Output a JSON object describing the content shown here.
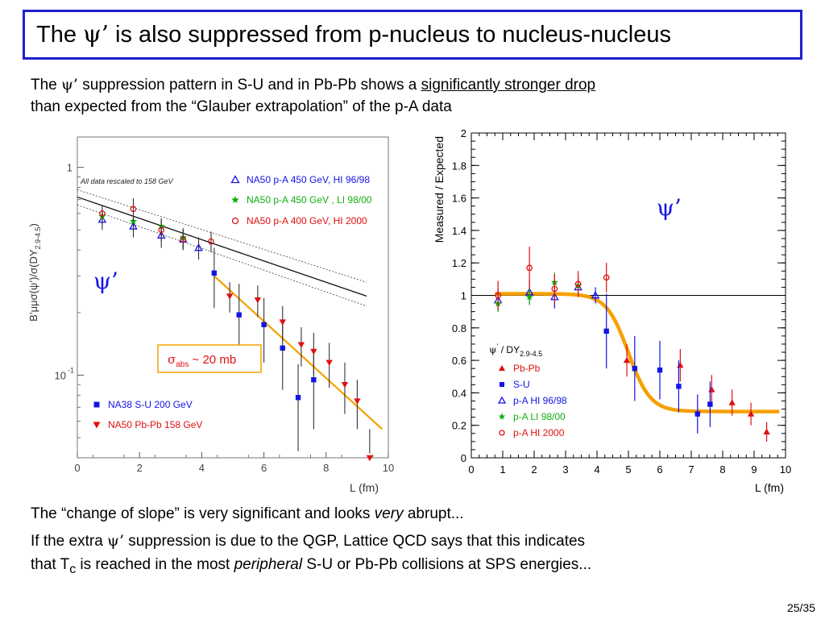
{
  "title": {
    "pre": "The ",
    "psi": "ψ’",
    "post": " is also suppressed from p-nucleus to nucleus-nucleus"
  },
  "intro": {
    "line1_pre": "The ",
    "psi": "ψ’",
    "line1_mid": " suppression pattern in S-U and in Pb-Pb shows a ",
    "line1_underline": "significantly stronger drop",
    "line2": "than expected from the “Glauber extrapolation” of the p-A data"
  },
  "bottom": {
    "line1_pre": "The “change of slope” is very significant and looks ",
    "line1_em": "very",
    "line1_post": " abrupt...",
    "line2_pre": "If the extra ",
    "psi": "ψ’",
    "line2_post": " suppression is due to the QGP, Lattice QCD says that this indicates",
    "line3_pre": "that T",
    "line3_sub": "c",
    "line3_mid": " is reached in the most ",
    "line3_em": "peripheral",
    "line3_post": " S-U or Pb-Pb collisions at SPS energies..."
  },
  "page_number": "25/35",
  "colors": {
    "blue": "#1414e6",
    "red": "#e01010",
    "green": "#10b010",
    "orange": "#f5a000",
    "title_border": "#1f1fd0"
  },
  "chart_data": [
    {
      "type": "scatter",
      "xlabel": "L (fm)",
      "ylabel_text": "B’μμσ(ψ’)/σ(DY",
      "ylabel_sub": "2.9-4.5",
      "ylabel_close": ")",
      "xlim": [
        0,
        10
      ],
      "ylim": [
        0.04,
        1.4
      ],
      "yscale": "log",
      "xticks": [
        0,
        2,
        4,
        6,
        8,
        10
      ],
      "yticks": [
        {
          "v": 1,
          "label": "1"
        },
        {
          "v": 0.1,
          "label": "10",
          "sup": "-1"
        }
      ],
      "note": "All data rescaled to 158 GeV",
      "annotation": {
        "text": "σ",
        "sub": "abs",
        "post": " ~ 20 mb"
      },
      "psi_label": "ψ’",
      "series": [
        {
          "name": "NA50 p-A 450 GeV, HI 96/98",
          "marker": "triangle-open",
          "color": "#1414e6",
          "x": [
            0.8,
            1.8,
            2.7,
            3.4,
            3.9
          ],
          "y": [
            0.56,
            0.52,
            0.47,
            0.45,
            0.41
          ],
          "err": [
            0.06,
            0.06,
            0.06,
            0.05,
            0.05
          ]
        },
        {
          "name": "NA50 p-A 450 GeV , LI 98/00",
          "marker": "star",
          "color": "#10b010",
          "x": [
            0.8,
            1.8,
            2.7,
            3.4
          ],
          "y": [
            0.58,
            0.55,
            0.52,
            0.46
          ],
          "err": [
            0.05,
            0.05,
            0.05,
            0.05
          ]
        },
        {
          "name": "NA50 p-A 400 GeV, HI 2000",
          "marker": "circle-open",
          "color": "#e01010",
          "x": [
            0.8,
            1.8,
            2.7,
            3.4,
            4.3
          ],
          "y": [
            0.6,
            0.63,
            0.5,
            0.45,
            0.44
          ],
          "err": [
            0.06,
            0.08,
            0.06,
            0.05,
            0.05
          ]
        },
        {
          "name": "NA38 S-U 200 GeV",
          "marker": "square",
          "color": "#1414e6",
          "x": [
            4.4,
            5.2,
            6.0,
            6.6,
            7.1,
            7.6
          ],
          "y": [
            0.31,
            0.195,
            0.175,
            0.135,
            0.078,
            0.095
          ],
          "err": [
            0.1,
            0.08,
            0.06,
            0.05,
            0.035,
            0.04
          ]
        },
        {
          "name": "NA50 Pb-Pb 158 GeV",
          "marker": "triangle-down",
          "color": "#e01010",
          "x": [
            4.9,
            5.8,
            6.6,
            7.2,
            7.6,
            8.1,
            8.6,
            9.0,
            9.4
          ],
          "y": [
            0.24,
            0.23,
            0.18,
            0.14,
            0.13,
            0.115,
            0.09,
            0.075,
            0.04
          ],
          "err": [
            0.04,
            0.04,
            0.035,
            0.03,
            0.03,
            0.028,
            0.025,
            0.02,
            0.015
          ]
        }
      ],
      "glauber_lines": {
        "central": {
          "x": [
            0,
            9.3
          ],
          "y": [
            0.72,
            0.24
          ]
        },
        "upper": {
          "x": [
            0,
            9.3
          ],
          "y": [
            0.78,
            0.28
          ]
        },
        "lower": {
          "x": [
            0,
            9.3
          ],
          "y": [
            0.66,
            0.215
          ]
        }
      },
      "orange_line": {
        "x": [
          4.4,
          9.8
        ],
        "y": [
          0.3,
          0.055
        ]
      }
    },
    {
      "type": "scatter",
      "xlabel": "L (fm)",
      "ylabel": "Measured / Expected",
      "xlim": [
        0,
        10
      ],
      "ylim": [
        0,
        2
      ],
      "xticks": [
        0,
        1,
        2,
        3,
        4,
        5,
        6,
        7,
        8,
        9,
        10
      ],
      "yticks": [
        0,
        0.2,
        0.4,
        0.6,
        0.8,
        1,
        1.2,
        1.4,
        1.6,
        1.8,
        2
      ],
      "ytick_labels": [
        "0",
        "0.2",
        "0.4",
        "0.6",
        "0.8",
        "1",
        "1.2",
        "1.4",
        "1.6",
        "1.8",
        "2"
      ],
      "reference_line": 1,
      "psi_label": "ψ’",
      "legend_title": {
        "psi": "ψ",
        "prime": "’",
        "text": " / DY",
        "sub": "2.9-4.5"
      },
      "series": [
        {
          "name": "Pb-Pb",
          "marker": "triangle",
          "color": "#e01010",
          "x": [
            4.95,
            6.65,
            7.65,
            8.3,
            8.9,
            9.4
          ],
          "y": [
            0.6,
            0.57,
            0.42,
            0.34,
            0.27,
            0.16
          ],
          "err": [
            0.1,
            0.1,
            0.09,
            0.08,
            0.07,
            0.06
          ]
        },
        {
          "name": "S-U",
          "marker": "square",
          "color": "#1414e6",
          "x": [
            4.3,
            5.2,
            6.0,
            6.6,
            7.2,
            7.6
          ],
          "y": [
            0.78,
            0.55,
            0.54,
            0.44,
            0.27,
            0.33
          ],
          "err": [
            0.23,
            0.2,
            0.18,
            0.16,
            0.12,
            0.14
          ]
        },
        {
          "name": "p-A HI 96/98",
          "marker": "triangle-open",
          "color": "#1414e6",
          "x": [
            0.85,
            1.85,
            2.65,
            3.4,
            3.95
          ],
          "y": [
            0.97,
            1.02,
            0.99,
            1.05,
            1.0
          ],
          "err": [
            0.07,
            0.07,
            0.07,
            0.06,
            0.05
          ]
        },
        {
          "name": "p-A LI 98/00",
          "marker": "star",
          "color": "#10b010",
          "x": [
            0.85,
            1.85,
            2.65,
            3.4
          ],
          "y": [
            0.95,
            0.99,
            1.08,
            1.06
          ],
          "err": [
            0.05,
            0.05,
            0.06,
            0.05
          ]
        },
        {
          "name": "p-A HI 2000",
          "marker": "circle-open",
          "color": "#e01010",
          "x": [
            0.85,
            1.85,
            2.65,
            3.4,
            4.3
          ],
          "y": [
            1.0,
            1.17,
            1.04,
            1.07,
            1.11
          ],
          "err": [
            0.09,
            0.13,
            0.09,
            0.08,
            0.09
          ]
        }
      ],
      "fit_curve": {
        "color": "#f5a000",
        "plateau_high": 1.01,
        "plateau_low": 0.285,
        "midpoint": 5.0,
        "width": 0.35,
        "x_start": 0.75,
        "x_end": 9.8
      }
    }
  ]
}
